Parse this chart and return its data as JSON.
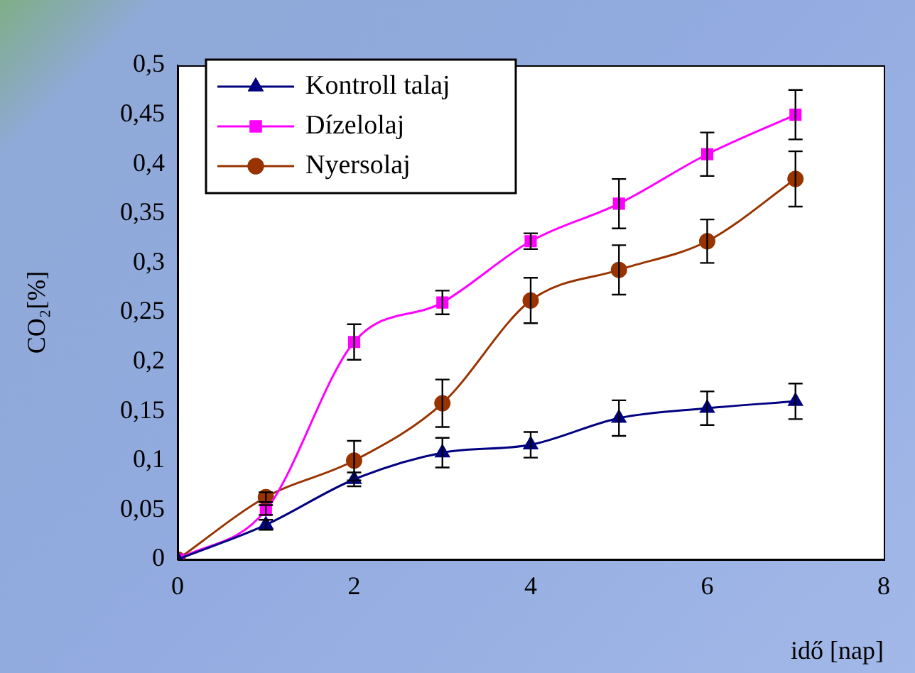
{
  "chart_data": {
    "type": "line",
    "xlabel": "idő [nap]",
    "ylabel": "CO₂[%]",
    "x": [
      0,
      1,
      2,
      3,
      4,
      5,
      6,
      7
    ],
    "series": [
      {
        "name": "Kontroll talaj",
        "color": "#000080",
        "marker": "triangle",
        "values": [
          0,
          0.035,
          0.081,
          0.108,
          0.116,
          0.143,
          0.153,
          0.16
        ],
        "errors": [
          null,
          0.005,
          0.007,
          0.015,
          0.013,
          0.018,
          0.017,
          0.018
        ]
      },
      {
        "name": "Dízelolaj",
        "color": "#ff00ff",
        "marker": "square",
        "values": [
          0,
          0.05,
          0.22,
          0.26,
          0.322,
          0.36,
          0.41,
          0.45
        ],
        "errors": [
          null,
          0.005,
          0.018,
          0.012,
          0.008,
          0.025,
          0.022,
          0.025
        ]
      },
      {
        "name": "Nyersolaj",
        "color": "#993300",
        "marker": "circle",
        "values": [
          0,
          0.063,
          0.1,
          0.158,
          0.262,
          0.293,
          0.322,
          0.385
        ],
        "errors": [
          null,
          0.005,
          0.02,
          0.024,
          0.023,
          0.025,
          0.022,
          0.028
        ]
      }
    ],
    "xlim": [
      0,
      8
    ],
    "xticks": [
      0,
      2,
      4,
      6,
      8
    ],
    "ylim": [
      0,
      0.5
    ],
    "yticks": [
      0,
      {
        "value": 0.05,
        "label": "0,05"
      },
      {
        "value": 0.1,
        "label": "0,1"
      },
      {
        "value": 0.15,
        "label": "0,15"
      },
      {
        "value": 0.2,
        "label": "0,2"
      },
      {
        "value": 0.25,
        "label": "0,25"
      },
      {
        "value": 0.3,
        "label": "0,3"
      },
      {
        "value": 0.35,
        "label": "0,35"
      },
      {
        "value": 0.4,
        "label": "0,4"
      },
      {
        "value": 0.45,
        "label": "0,45"
      },
      {
        "value": 0.5,
        "label": "0,5"
      }
    ],
    "grid": false,
    "legend": "top left",
    "line_style": "solid"
  }
}
